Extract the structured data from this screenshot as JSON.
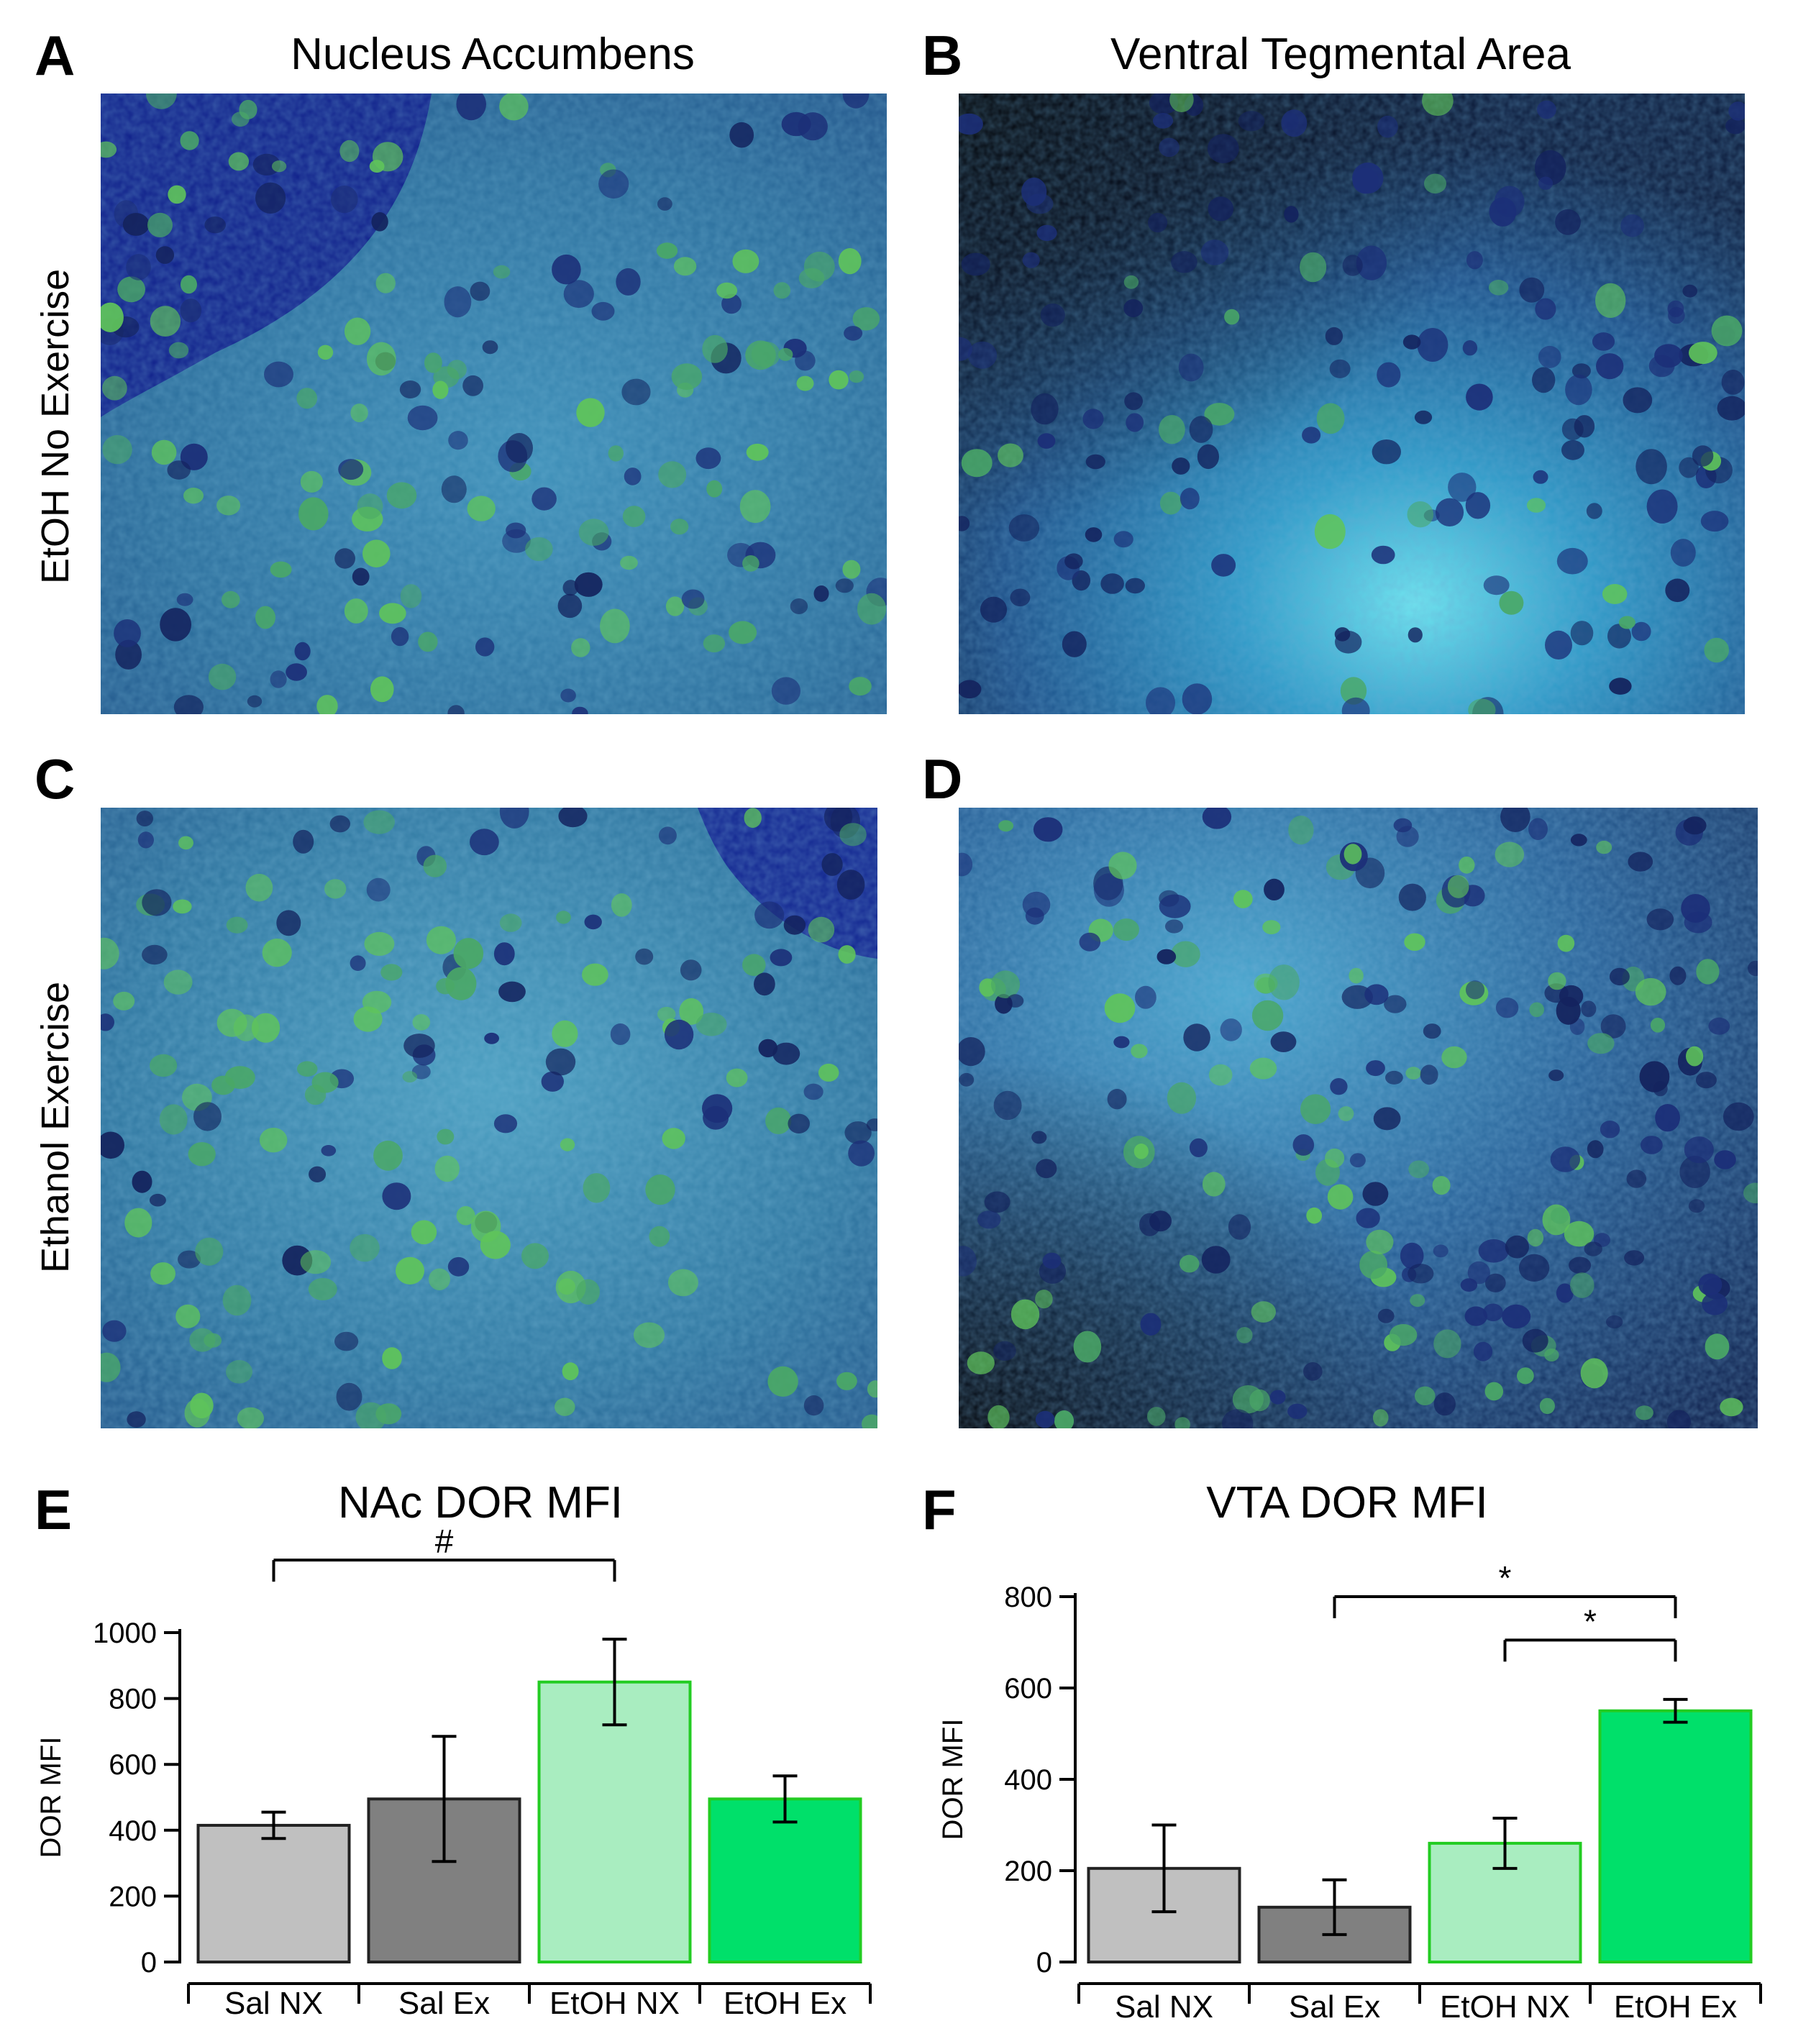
{
  "panels": {
    "A": {
      "letter": "A",
      "title": "Nucleus Accumbens"
    },
    "B": {
      "letter": "B",
      "title": "Ventral Tegmental Area"
    },
    "C": {
      "letter": "C"
    },
    "D": {
      "letter": "D"
    },
    "E": {
      "letter": "E"
    },
    "F": {
      "letter": "F"
    }
  },
  "rows": {
    "top_label": "EtOH No Exercise",
    "bottom_label": "Ethanol Exercise"
  },
  "colors": {
    "sal_nx": "#c0c0c0",
    "sal_ex": "#808080",
    "etoh_nx": "#a9edc0",
    "etoh_ex": "#00e06a",
    "etoh_border": "#22cc22"
  },
  "chart_data": [
    {
      "type": "bar",
      "title": "NAc DOR MFI",
      "ylabel": "DOR MFI",
      "categories": [
        "Sal NX",
        "Sal Ex",
        "EtOH NX",
        "EtOH Ex"
      ],
      "values": [
        415,
        495,
        850,
        495
      ],
      "errors": [
        40,
        190,
        130,
        70
      ],
      "ylim": [
        0,
        1000
      ],
      "yticks": [
        0,
        200,
        400,
        600,
        800,
        1000
      ],
      "significance": [
        {
          "from": 0,
          "to": 2,
          "label": "#"
        }
      ]
    },
    {
      "type": "bar",
      "title": "VTA DOR MFI",
      "ylabel": "DOR MFI",
      "categories": [
        "Sal NX",
        "Sal Ex",
        "EtOH NX",
        "EtOH Ex"
      ],
      "values": [
        205,
        120,
        260,
        550
      ],
      "errors": [
        95,
        60,
        55,
        25
      ],
      "ylim": [
        0,
        800
      ],
      "yticks": [
        0,
        200,
        400,
        600,
        800
      ],
      "significance": [
        {
          "from": 1,
          "to": 3,
          "label": "*"
        },
        {
          "from": 2,
          "to": 3,
          "label": "*"
        }
      ]
    }
  ]
}
